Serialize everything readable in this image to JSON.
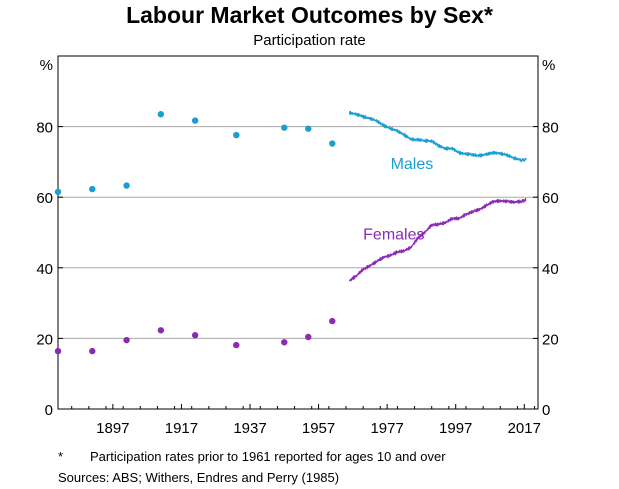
{
  "header": {
    "title": "Labour Market Outcomes by Sex*",
    "subtitle": "Participation rate"
  },
  "notes": {
    "asterisk_key": "*",
    "asterisk_text": "Participation rates prior to 1961 reported for ages 10 and over",
    "sources_key": "Sources:",
    "sources_text": "ABS; Withers, Endres and Perry (1985)"
  },
  "colors": {
    "males": "#1a9fd3",
    "females": "#8a2ab5"
  },
  "chart_data": {
    "type": "line",
    "title": "Labour Market Outcomes by Sex*",
    "subtitle": "Participation rate",
    "y_unit_left": "%",
    "y_unit_right": "%",
    "ylim": [
      0,
      100
    ],
    "xlim": [
      1881,
      2021
    ],
    "y_ticks": [
      0,
      20,
      40,
      60,
      80
    ],
    "x_ticks": [
      1897,
      1917,
      1937,
      1957,
      1977,
      1997,
      2017
    ],
    "grid": true,
    "series": [
      {
        "name": "Males",
        "color": "#1a9fd3",
        "census_points": [
          {
            "x": 1881,
            "y": 61.5
          },
          {
            "x": 1891,
            "y": 62.3
          },
          {
            "x": 1901,
            "y": 63.3
          },
          {
            "x": 1911,
            "y": 83.5
          },
          {
            "x": 1921,
            "y": 81.7
          },
          {
            "x": 1933,
            "y": 77.6
          },
          {
            "x": 1947,
            "y": 79.7
          },
          {
            "x": 1954,
            "y": 79.4
          },
          {
            "x": 1961,
            "y": 75.2
          }
        ],
        "monthly_line": [
          {
            "x": 1966.0,
            "y": 83.9
          },
          {
            "x": 1968.0,
            "y": 83.5
          },
          {
            "x": 1970.0,
            "y": 82.8
          },
          {
            "x": 1972.0,
            "y": 82.3
          },
          {
            "x": 1974.0,
            "y": 81.6
          },
          {
            "x": 1976.0,
            "y": 80.3
          },
          {
            "x": 1978.0,
            "y": 79.4
          },
          {
            "x": 1980.0,
            "y": 78.8
          },
          {
            "x": 1982.0,
            "y": 77.6
          },
          {
            "x": 1984.0,
            "y": 76.4
          },
          {
            "x": 1986.0,
            "y": 76.3
          },
          {
            "x": 1988.0,
            "y": 76.0
          },
          {
            "x": 1990.0,
            "y": 75.9
          },
          {
            "x": 1992.0,
            "y": 74.6
          },
          {
            "x": 1994.0,
            "y": 73.8
          },
          {
            "x": 1996.0,
            "y": 73.8
          },
          {
            "x": 1998.0,
            "y": 72.6
          },
          {
            "x": 2000.0,
            "y": 72.3
          },
          {
            "x": 2002.0,
            "y": 72.0
          },
          {
            "x": 2004.0,
            "y": 71.8
          },
          {
            "x": 2006.0,
            "y": 72.2
          },
          {
            "x": 2008.0,
            "y": 72.6
          },
          {
            "x": 2010.0,
            "y": 72.4
          },
          {
            "x": 2012.0,
            "y": 71.9
          },
          {
            "x": 2014.0,
            "y": 71.1
          },
          {
            "x": 2016.0,
            "y": 70.5
          },
          {
            "x": 2017.5,
            "y": 70.6
          }
        ],
        "label": "Males"
      },
      {
        "name": "Females",
        "color": "#8a2ab5",
        "census_points": [
          {
            "x": 1881,
            "y": 16.4
          },
          {
            "x": 1891,
            "y": 16.4
          },
          {
            "x": 1901,
            "y": 19.5
          },
          {
            "x": 1911,
            "y": 22.3
          },
          {
            "x": 1921,
            "y": 20.9
          },
          {
            "x": 1933,
            "y": 18.1
          },
          {
            "x": 1947,
            "y": 18.9
          },
          {
            "x": 1954,
            "y": 20.4
          },
          {
            "x": 1961,
            "y": 24.9
          }
        ],
        "monthly_line": [
          {
            "x": 1966.0,
            "y": 36.4
          },
          {
            "x": 1968.0,
            "y": 37.7
          },
          {
            "x": 1970.0,
            "y": 39.6
          },
          {
            "x": 1972.0,
            "y": 40.6
          },
          {
            "x": 1974.0,
            "y": 41.8
          },
          {
            "x": 1976.0,
            "y": 43.0
          },
          {
            "x": 1978.0,
            "y": 43.5
          },
          {
            "x": 1980.0,
            "y": 44.5
          },
          {
            "x": 1982.0,
            "y": 44.8
          },
          {
            "x": 1984.0,
            "y": 45.8
          },
          {
            "x": 1986.0,
            "y": 48.5
          },
          {
            "x": 1988.0,
            "y": 50.0
          },
          {
            "x": 1990.0,
            "y": 52.2
          },
          {
            "x": 1992.0,
            "y": 52.3
          },
          {
            "x": 1994.0,
            "y": 52.8
          },
          {
            "x": 1996.0,
            "y": 54.0
          },
          {
            "x": 1998.0,
            "y": 54.0
          },
          {
            "x": 2000.0,
            "y": 55.2
          },
          {
            "x": 2002.0,
            "y": 55.9
          },
          {
            "x": 2004.0,
            "y": 56.6
          },
          {
            "x": 2006.0,
            "y": 57.7
          },
          {
            "x": 2008.0,
            "y": 58.8
          },
          {
            "x": 2010.0,
            "y": 59.0
          },
          {
            "x": 2012.0,
            "y": 58.8
          },
          {
            "x": 2014.0,
            "y": 58.6
          },
          {
            "x": 2016.0,
            "y": 58.8
          },
          {
            "x": 2017.5,
            "y": 59.2
          }
        ],
        "label": "Females"
      }
    ]
  }
}
